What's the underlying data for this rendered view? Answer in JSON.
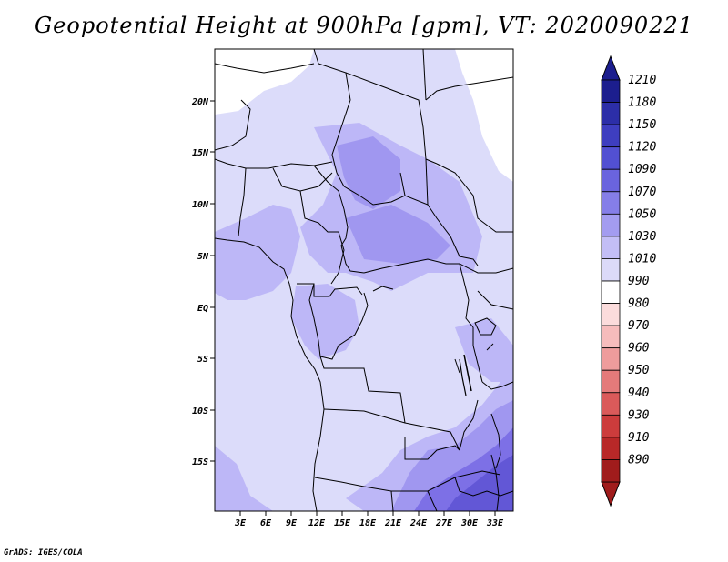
{
  "title": "Geopotential Height at 900hPa [gpm], VT: 2020090221",
  "credit": "GrADS: IGES/COLA",
  "map": {
    "lat_labels": [
      "20N",
      "15N",
      "10N",
      "5N",
      "EQ",
      "5S",
      "10S",
      "15S"
    ],
    "lon_labels": [
      "3E",
      "6E",
      "9E",
      "12E",
      "15E",
      "18E",
      "21E",
      "24E",
      "27E",
      "30E",
      "33E"
    ],
    "shade_colors": {
      "light": "#dcdcfa",
      "mid": "#bdb7f7",
      "deep": "#a097f0",
      "deeper": "#7d70e6",
      "darkest": "#6257d6"
    }
  },
  "colorbar": {
    "labels": [
      "1210",
      "1180",
      "1150",
      "1120",
      "1090",
      "1070",
      "1050",
      "1030",
      "1010",
      "990",
      "980",
      "970",
      "960",
      "950",
      "940",
      "930",
      "910",
      "890"
    ],
    "colors": [
      "#1c1e8e",
      "#2c2ea8",
      "#3e3ec0",
      "#5250d2",
      "#6a64de",
      "#857ee8",
      "#a39cf0",
      "#c3bef6",
      "#dcdaf8",
      "#ffffff",
      "#fbdcdc",
      "#f6bcbc",
      "#ee9c9c",
      "#e47a7a",
      "#da5a5a",
      "#cc3c3c",
      "#b82828",
      "#a01c1c"
    ]
  }
}
